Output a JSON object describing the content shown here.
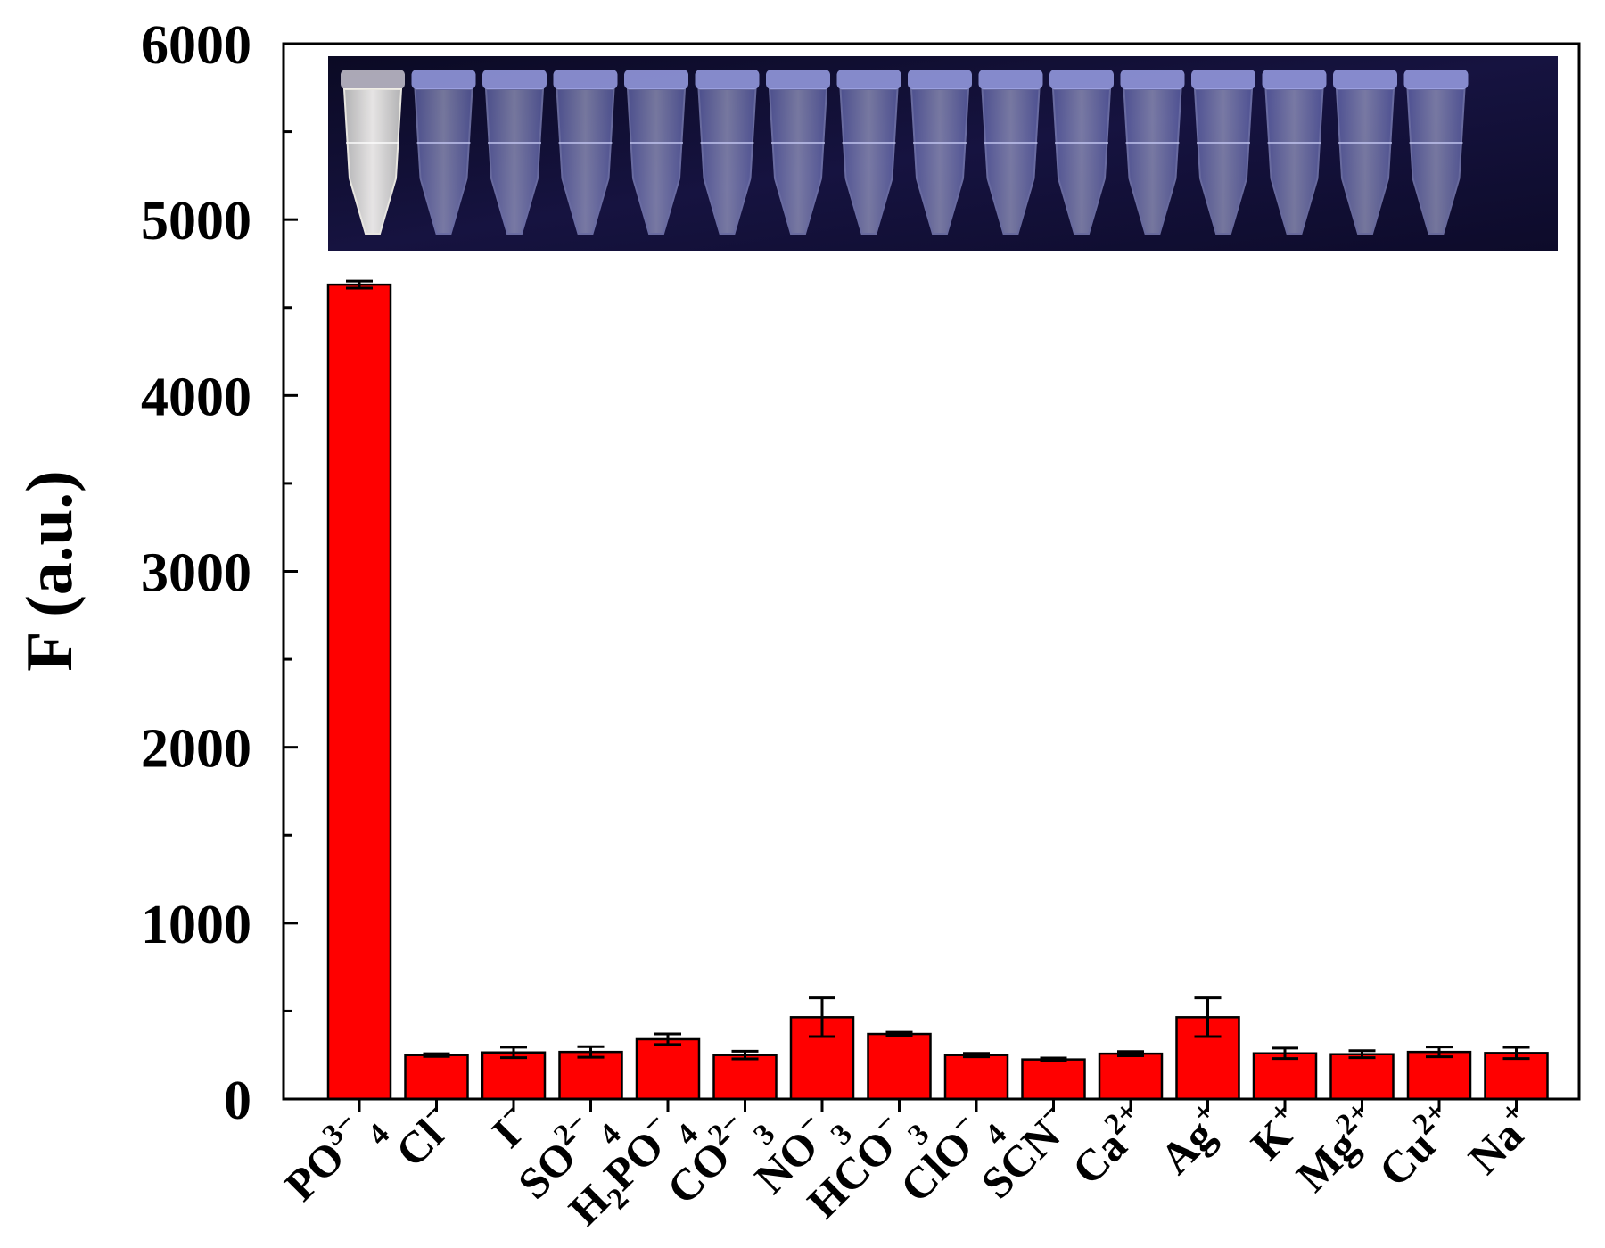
{
  "chart_data": {
    "type": "bar",
    "ylabel": "F (a.u.)",
    "xlabel": "",
    "ylim": [
      0,
      6000
    ],
    "yticks": [
      "0",
      "1000",
      "2000",
      "3000",
      "4000",
      "5000",
      "6000"
    ],
    "bar_color": "#ff0000",
    "inset": "photo of 16 sample tubes under UV light",
    "categories": [
      {
        "base": "PO",
        "sup": "3−",
        "sub": "4"
      },
      {
        "base": "Cl",
        "sup": "−",
        "sub": ""
      },
      {
        "base": "I",
        "sup": "−",
        "sub": ""
      },
      {
        "base": "SO",
        "sup": "2−",
        "sub": "4"
      },
      {
        "base": "H",
        "sub1": "2",
        "base2": "PO",
        "sup": "−",
        "sub": "4"
      },
      {
        "base": "CO",
        "sup": "2−",
        "sub": "3"
      },
      {
        "base": "NO",
        "sup": "−",
        "sub": "3"
      },
      {
        "base": "HCO",
        "sup": "−",
        "sub": "3"
      },
      {
        "base": "ClO",
        "sup": "−",
        "sub": "4"
      },
      {
        "base": "SCN",
        "sup": "−",
        "sub": ""
      },
      {
        "base": "Ca",
        "sup": "2+",
        "sub": ""
      },
      {
        "base": "Ag",
        "sup": "+",
        "sub": ""
      },
      {
        "base": "K",
        "sup": "+",
        "sub": ""
      },
      {
        "base": "Mg",
        "sup": "2+",
        "sub": ""
      },
      {
        "base": "Cu",
        "sup": "2+",
        "sub": ""
      },
      {
        "base": "Na",
        "sup": "+",
        "sub": ""
      }
    ],
    "values": [
      4630,
      250,
      265,
      268,
      340,
      250,
      465,
      370,
      250,
      225,
      258,
      465,
      260,
      255,
      268,
      262
    ],
    "errors": [
      20,
      8,
      30,
      30,
      30,
      22,
      110,
      10,
      10,
      8,
      12,
      110,
      30,
      20,
      28,
      32
    ]
  }
}
